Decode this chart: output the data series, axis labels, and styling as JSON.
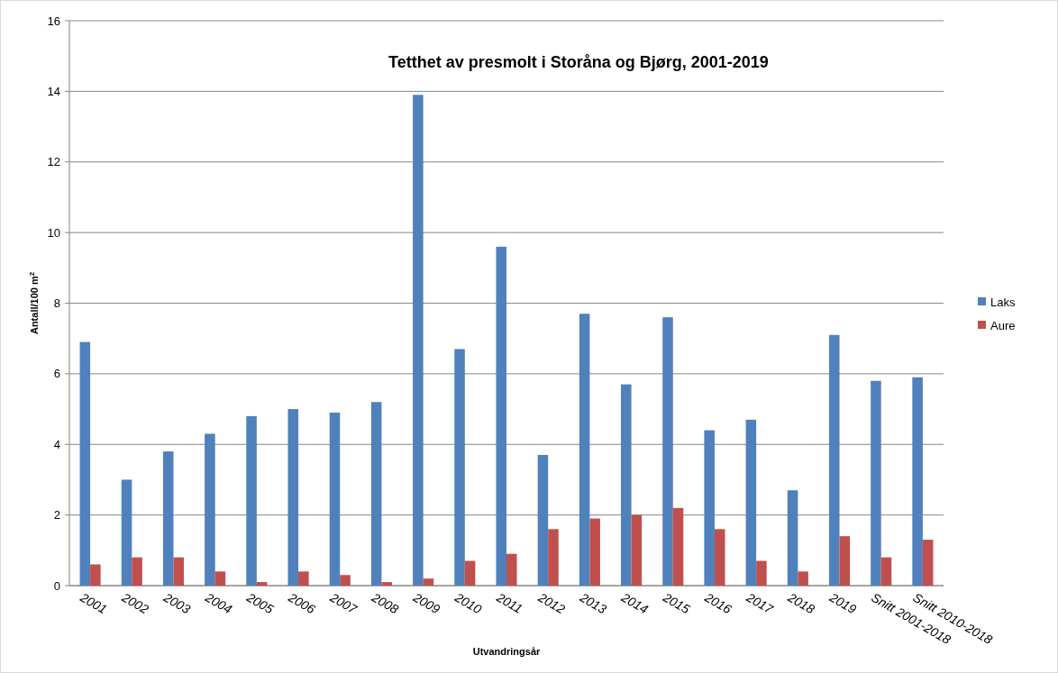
{
  "chart_data": {
    "type": "bar",
    "title": "Tetthet av presmolt i Storåna og Bjørg, 2001-2019",
    "xlabel": "Utvandringsår",
    "ylabel": "Antall/100 m$^{2}$",
    "categories": [
      "2001",
      "2002",
      "2003",
      "2004",
      "2005",
      "2006",
      "2007",
      "2008",
      "2009",
      "2010",
      "2011",
      "2012",
      "2013",
      "2014",
      "2015",
      "2016",
      "2017",
      "2018",
      "2019",
      "Snitt 2001-2018",
      "Snitt 2010-2018"
    ],
    "series": [
      {
        "name": "Laks",
        "color": "#4f81bd",
        "values": [
          6.9,
          3.0,
          3.8,
          4.3,
          4.8,
          5.0,
          4.9,
          5.2,
          13.9,
          6.7,
          9.6,
          3.7,
          7.7,
          5.7,
          7.6,
          4.4,
          4.7,
          2.7,
          7.1,
          5.8,
          5.9
        ]
      },
      {
        "name": "Aure",
        "color": "#c0504d",
        "values": [
          0.6,
          0.8,
          0.8,
          0.4,
          0.1,
          0.4,
          0.3,
          0.1,
          0.2,
          0.7,
          0.9,
          1.6,
          1.9,
          2.0,
          2.2,
          1.6,
          0.7,
          0.4,
          1.4,
          0.8,
          1.3
        ]
      }
    ],
    "ylim": [
      0,
      16
    ],
    "yticks": [
      0,
      2,
      4,
      6,
      8,
      10,
      12,
      14,
      16
    ],
    "grid": "y",
    "legend": "right"
  }
}
